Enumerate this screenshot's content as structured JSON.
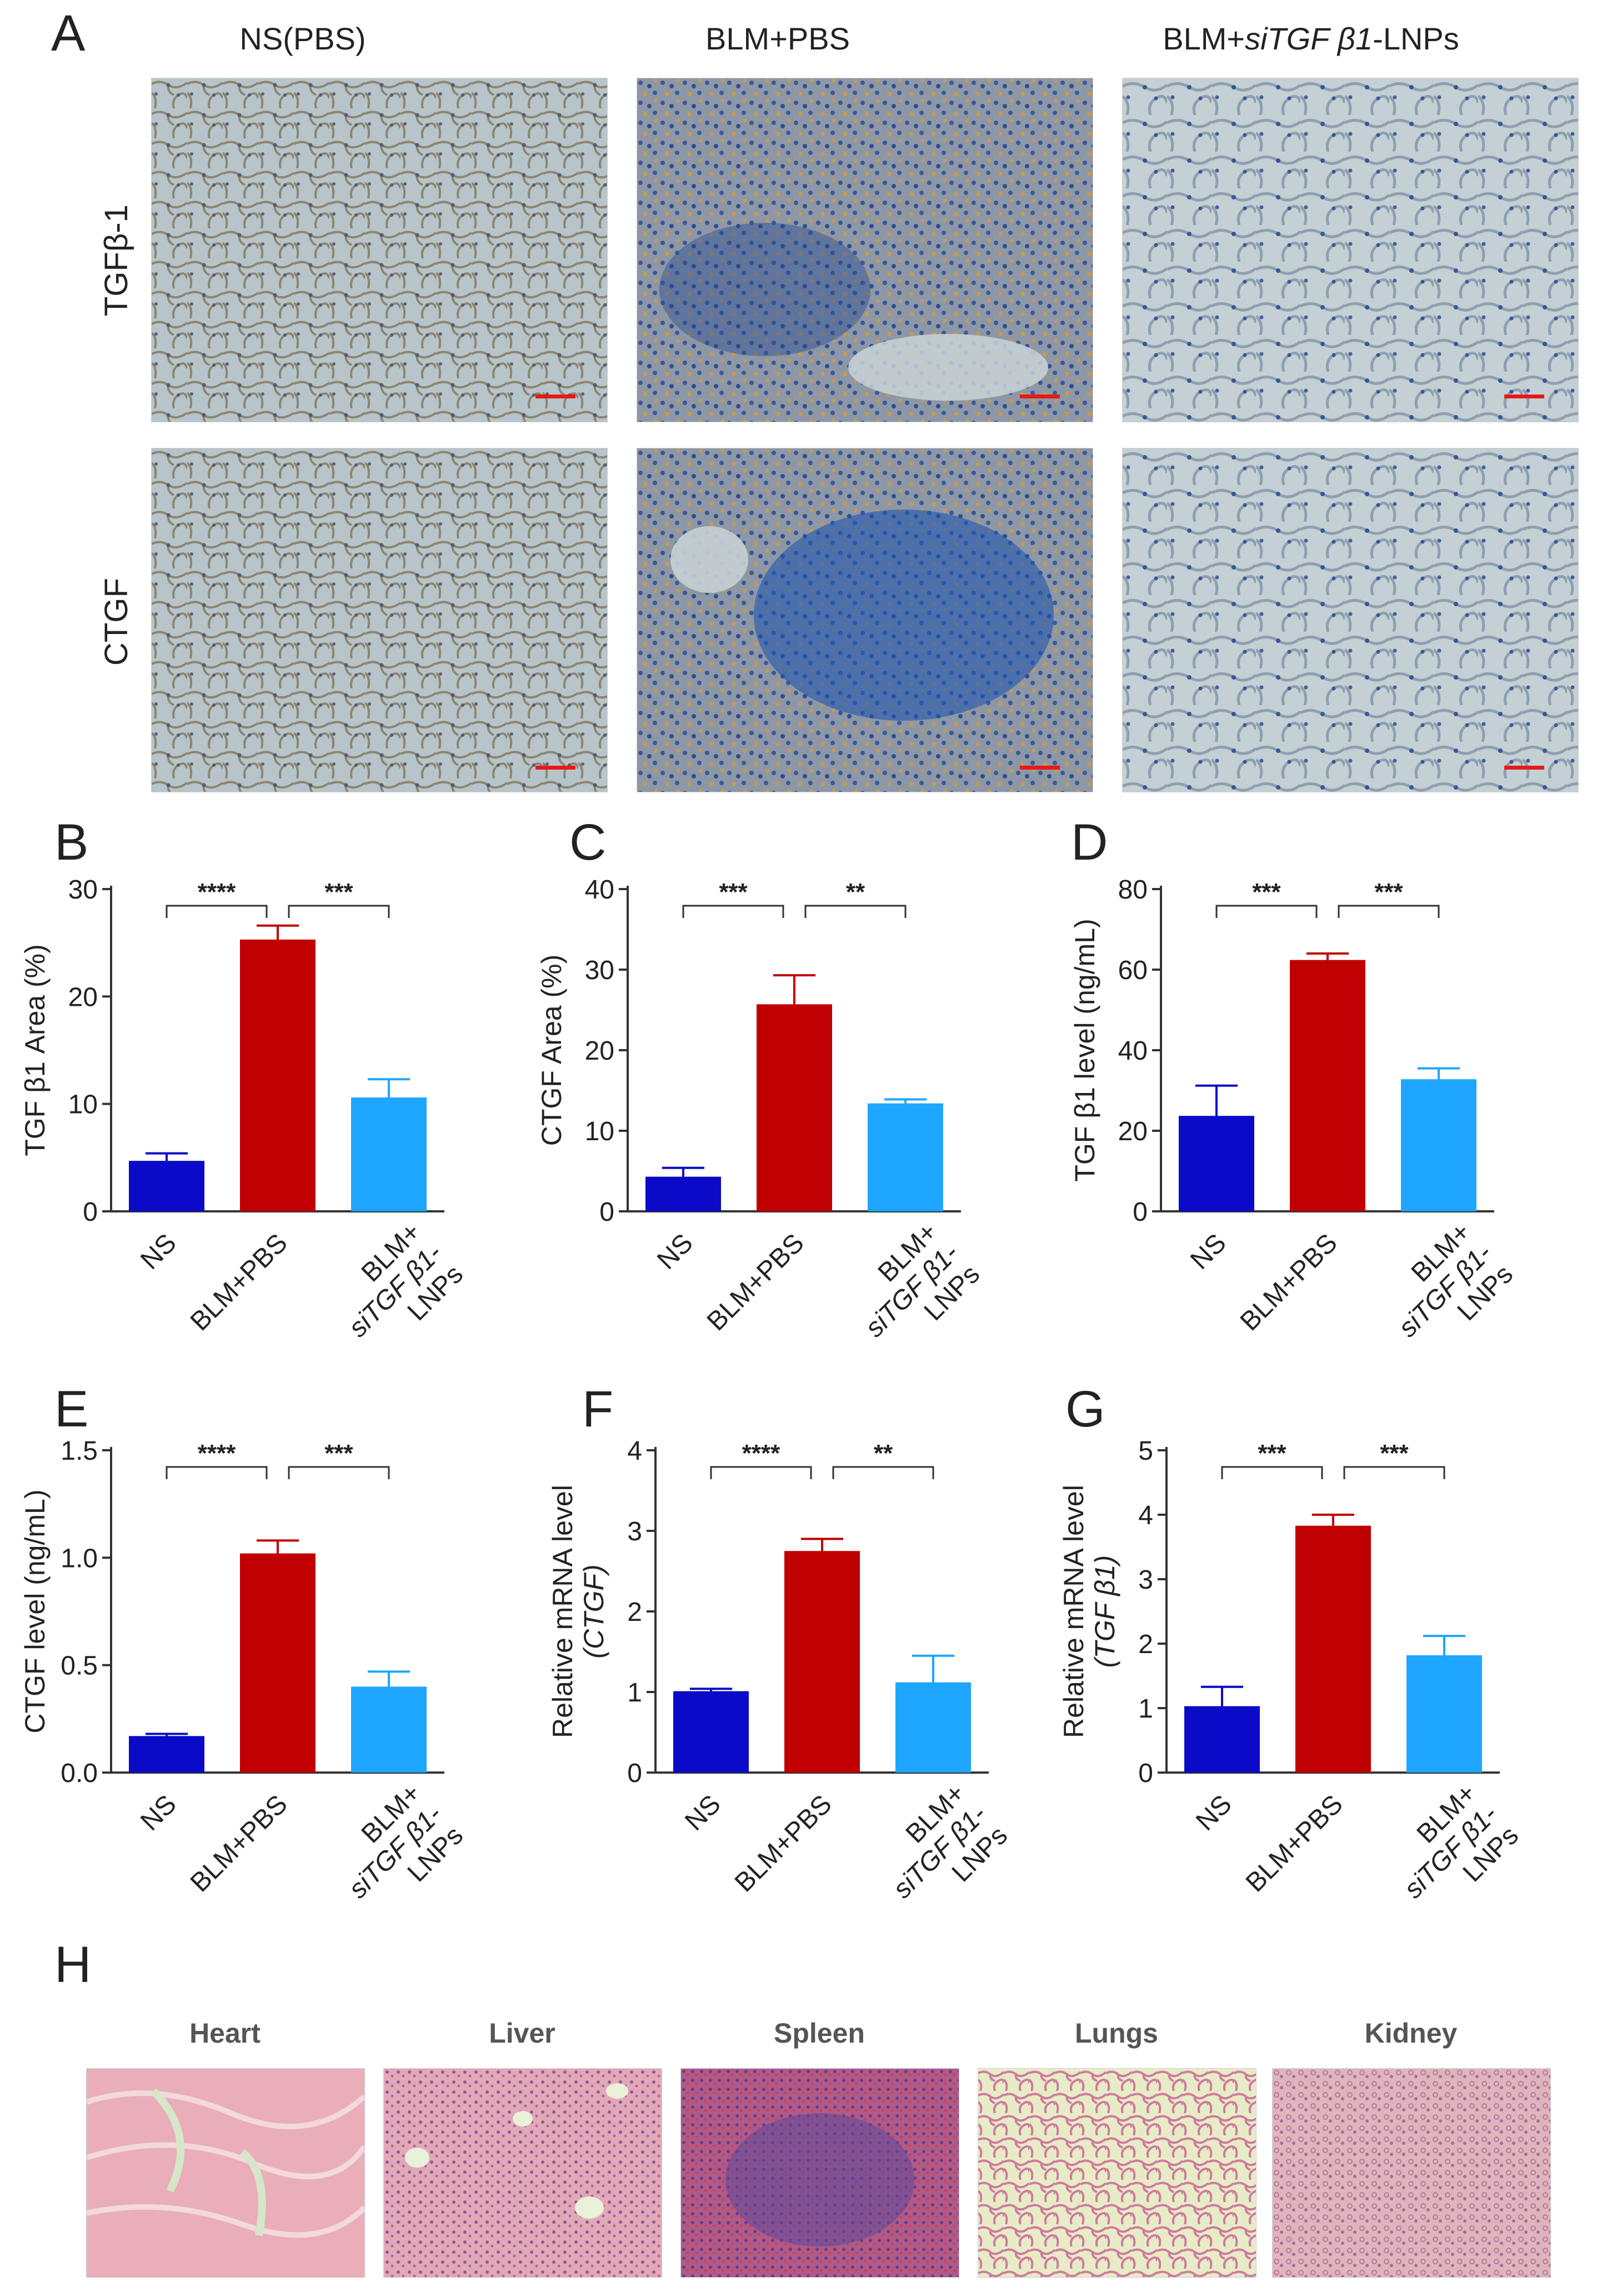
{
  "panel_letters": {
    "a": "A",
    "b": "B",
    "c": "C",
    "d": "D",
    "e": "E",
    "f": "F",
    "g": "G",
    "h": "H"
  },
  "panel_a": {
    "columns": [
      "NS(PBS)",
      "BLM+PBS",
      "BLM+siTGF β1-LNPs"
    ],
    "col3_parts": {
      "pre": "BLM+",
      "italic": "siTGF β1",
      "post": "-LNPs"
    },
    "rows": [
      "TGFβ-1",
      "CTGF"
    ]
  },
  "panel_h": {
    "organs": [
      "Heart",
      "Liver",
      "Spleen",
      "Lungs",
      "Kidney"
    ]
  },
  "colors": {
    "ns": "#0a0ac8",
    "blm": "#c00000",
    "lnp": "#1ea6ff",
    "tissue_bg": "#a9b6bc",
    "he_bg": "#e8b9c3"
  },
  "chart_data": [
    {
      "id": "B",
      "type": "bar",
      "categories": [
        "NS",
        "BLM+PBS",
        "BLM+siTGF β1-LNPs"
      ],
      "values": [
        4.7,
        25.3,
        10.6
      ],
      "errors": [
        0.7,
        1.3,
        1.7
      ],
      "ylabel": "TGF β1 Area (%)",
      "ylim": [
        0,
        30
      ],
      "yticks": [
        "0",
        "10",
        "20",
        "30"
      ],
      "significance": [
        {
          "from": 0,
          "to": 1,
          "label": "****"
        },
        {
          "from": 1,
          "to": 2,
          "label": "***"
        }
      ]
    },
    {
      "id": "C",
      "type": "bar",
      "categories": [
        "NS",
        "BLM+PBS",
        "BLM+siTGF β1-LNPs"
      ],
      "values": [
        4.3,
        25.7,
        13.4
      ],
      "errors": [
        1.1,
        3.6,
        0.5
      ],
      "ylabel": "CTGF Area (%)",
      "ylim": [
        0,
        40
      ],
      "yticks": [
        "0",
        "10",
        "20",
        "30",
        "40"
      ],
      "significance": [
        {
          "from": 0,
          "to": 1,
          "label": "***"
        },
        {
          "from": 1,
          "to": 2,
          "label": "**"
        }
      ]
    },
    {
      "id": "D",
      "type": "bar",
      "categories": [
        "NS",
        "BLM+PBS",
        "BLM+siTGF β1-LNPs"
      ],
      "values": [
        23.7,
        62.4,
        32.8
      ],
      "errors": [
        7.5,
        1.6,
        2.7
      ],
      "ylabel": "TGF β1 level (ng/mL)",
      "ylim": [
        0,
        80
      ],
      "yticks": [
        "0",
        "20",
        "40",
        "60",
        "80"
      ],
      "significance": [
        {
          "from": 0,
          "to": 1,
          "label": "***"
        },
        {
          "from": 1,
          "to": 2,
          "label": "***"
        }
      ]
    },
    {
      "id": "E",
      "type": "bar",
      "categories": [
        "NS",
        "BLM+PBS",
        "BLM+siTGF β1-LNPs"
      ],
      "values": [
        0.17,
        1.02,
        0.4
      ],
      "errors": [
        0.01,
        0.06,
        0.07
      ],
      "ylabel": "CTGF level (ng/mL)",
      "ylim": [
        0,
        1.5
      ],
      "yticks": [
        "0.0",
        "0.5",
        "1.0",
        "1.5"
      ],
      "significance": [
        {
          "from": 0,
          "to": 1,
          "label": "****"
        },
        {
          "from": 1,
          "to": 2,
          "label": "***"
        }
      ]
    },
    {
      "id": "F",
      "type": "bar",
      "categories": [
        "NS",
        "BLM+PBS",
        "BLM+siTGF β1-LNPs"
      ],
      "values": [
        1.01,
        2.75,
        1.12
      ],
      "errors": [
        0.03,
        0.15,
        0.33
      ],
      "ylabel": "Relative mRNA level",
      "ylabel2": "(CTGF)",
      "ylim": [
        0,
        4
      ],
      "yticks": [
        "0",
        "1",
        "2",
        "3",
        "4"
      ],
      "significance": [
        {
          "from": 0,
          "to": 1,
          "label": "****"
        },
        {
          "from": 1,
          "to": 2,
          "label": "**"
        }
      ]
    },
    {
      "id": "G",
      "type": "bar",
      "categories": [
        "NS",
        "BLM+PBS",
        "BLM+siTGF β1-LNPs"
      ],
      "values": [
        1.03,
        3.83,
        1.82
      ],
      "errors": [
        0.3,
        0.17,
        0.3
      ],
      "ylabel": "Relative mRNA level",
      "ylabel2": "(TGF β1)",
      "ylim": [
        0,
        5
      ],
      "yticks": [
        "0",
        "1",
        "2",
        "3",
        "4",
        "5"
      ],
      "significance": [
        {
          "from": 0,
          "to": 1,
          "label": "***"
        },
        {
          "from": 1,
          "to": 2,
          "label": "***"
        }
      ]
    }
  ],
  "xtick_parts": {
    "ns": "NS",
    "blm": "BLM+PBS",
    "lnp1": "BLM+",
    "lnp2": "siTGF β1-",
    "lnp3": "LNPs"
  }
}
